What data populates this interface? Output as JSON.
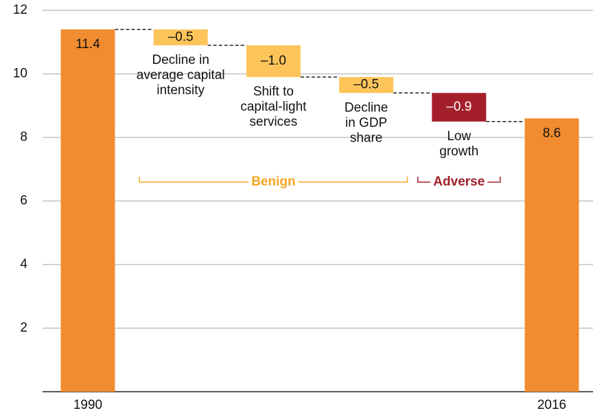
{
  "chart_data": {
    "type": "waterfall",
    "categories": [
      "1990",
      null,
      null,
      null,
      null,
      "2016"
    ],
    "measure": [
      "total",
      "relative",
      "relative",
      "relative",
      "relative",
      "total"
    ],
    "values": [
      11.4,
      -0.5,
      -1.0,
      -0.5,
      -0.9,
      8.6
    ],
    "value_labels": [
      "11.4",
      "–0.5",
      "–1.0",
      "–0.5",
      "–0.9",
      "8.6"
    ],
    "colors": [
      "#f28c30",
      "#fdc45a",
      "#fdc45a",
      "#fdc45a",
      "#a3202b",
      "#f28c30"
    ],
    "step_labels": [
      null,
      [
        "Decline in",
        "average capital",
        "intensity"
      ],
      [
        "Shift to",
        "capital-light",
        "services"
      ],
      [
        "Decline",
        "in GDP",
        "share"
      ],
      [
        "Low",
        "growth"
      ],
      null
    ],
    "groups": [
      {
        "label": "Benign",
        "from": 1,
        "to": 3,
        "color": "#f5a623"
      },
      {
        "label": "Adverse",
        "from": 4,
        "to": 4,
        "color": "#a3202b"
      }
    ],
    "ylim": [
      0,
      12
    ],
    "yticks": [
      2,
      4,
      6,
      8,
      10,
      12
    ],
    "grid": true
  }
}
